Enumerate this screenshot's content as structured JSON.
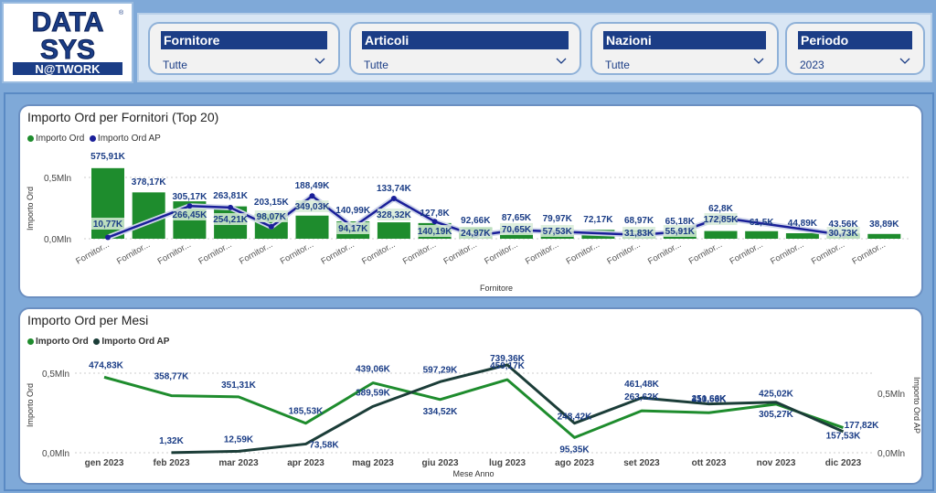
{
  "logo": {
    "line1": "DATA",
    "line2": "SYS",
    "line3": "N@TWORK"
  },
  "filters": [
    {
      "title": "Fornitore",
      "value": "Tutte"
    },
    {
      "title": "Articoli",
      "value": "Tutte"
    },
    {
      "title": "Nazioni",
      "value": "Tutte"
    },
    {
      "title": "Periodo",
      "value": "2023"
    }
  ],
  "charts": {
    "suppliers": {
      "title": "Importo Ord per Fornitori (Top 20)",
      "legend": [
        "Importo Ord",
        "Importo Ord AP"
      ],
      "y_ticks": [
        "0,5Mln",
        "0,0Mln"
      ],
      "y_label": "Importo Ord",
      "x_label": "Fornitore"
    },
    "months": {
      "title": "Importo Ord per Mesi",
      "legend": [
        "Importo Ord",
        "Importo Ord AP"
      ],
      "y_ticks_left": [
        "0,5Mln",
        "0,0Mln"
      ],
      "y_ticks_right": [
        "0,5Mln",
        "0,0Mln"
      ],
      "y_label": "Importo Ord",
      "y_label_right": "Importo Ord AP",
      "x_label": "Mese Anno"
    }
  },
  "colors": {
    "green": "#1e8c2d",
    "navy": "#1a1f99",
    "darkgreen": "#1b3d38"
  },
  "chart_data": [
    {
      "type": "bar",
      "title": "Importo Ord per Fornitori (Top 20)",
      "categories": [
        "Fornitor...",
        "Fornitor...",
        "Fornitor...",
        "Fornitor...",
        "Fornitor...",
        "Fornitor...",
        "Fornitor...",
        "Fornitor...",
        "Fornitor...",
        "Fornitor...",
        "Fornitor...",
        "Fornitor...",
        "Fornitor...",
        "Fornitor...",
        "Fornitor...",
        "Fornitor...",
        "Fornitor...",
        "Fornitor...",
        "Fornitor...",
        "Fornitor..."
      ],
      "series": [
        {
          "name": "Importo Ord",
          "values": [
            575910,
            378170,
            305170,
            263810,
            203150,
            188490,
            140990,
            133740,
            127800,
            92660,
            87650,
            79970,
            72170,
            68970,
            65180,
            62800,
            61500,
            44890,
            43560,
            38890
          ],
          "labels": [
            "575,91K",
            "378,17K",
            "305,17K",
            "263,81K",
            "203,15K",
            "188,49K",
            "140,99K",
            "133,74K",
            "127,8K",
            "92,66K",
            "87,65K",
            "79,97K",
            "72,17K",
            "68,97K",
            "65,18K",
            "62,8K",
            "61,5K",
            "44,89K",
            "43,56K",
            "38,89K"
          ]
        },
        {
          "name": "Importo Ord AP",
          "values": [
            10770,
            null,
            266450,
            254210,
            98070,
            349030,
            94170,
            328320,
            140190,
            24970,
            70650,
            57530,
            null,
            31830,
            55910,
            172850,
            null,
            null,
            30730,
            null
          ],
          "labels": [
            "10,77K",
            "",
            "266,45K",
            "254,21K",
            "98,07K",
            "349,03K",
            "94,17K",
            "328,32K",
            "140,19K",
            "24,97K",
            "70,65K",
            "57,53K",
            "",
            "31,83K",
            "55,91K",
            "172,85K",
            "",
            "",
            "30,73K",
            ""
          ]
        }
      ],
      "xlabel": "Fornitore",
      "ylabel": "Importo Ord",
      "y_ticks": [
        "0,0Mln",
        "0,5Mln"
      ]
    },
    {
      "type": "line",
      "title": "Importo Ord per Mesi",
      "categories": [
        "gen 2023",
        "feb 2023",
        "mar 2023",
        "apr 2023",
        "mag 2023",
        "giu 2023",
        "lug 2023",
        "ago 2023",
        "set 2023",
        "ott 2023",
        "nov 2023",
        "dic 2023"
      ],
      "series": [
        {
          "name": "Importo Ord",
          "values": [
            474830,
            358770,
            351310,
            185530,
            439060,
            334520,
            459170,
            95350,
            263620,
            251660,
            305270,
            157530
          ],
          "labels": [
            "474,83K",
            "358,77K",
            "351,31K",
            "185,53K",
            "439,06K",
            "334,52K",
            "459,17K",
            "95,35K",
            "263,62K",
            "251,66K",
            "305,27K",
            "157,53K"
          ]
        },
        {
          "name": "Importo Ord AP",
          "values": [
            null,
            1320,
            12590,
            73580,
            389590,
            597290,
            739360,
            248420,
            461480,
            410530,
            425020,
            177820
          ],
          "labels": [
            "",
            "1,32K",
            "12,59K",
            "73,58K",
            "389,59K",
            "597,29K",
            "739,36K",
            "248,42K",
            "461,48K",
            "410,53K",
            "425,02K",
            "177,82K"
          ]
        }
      ],
      "xlabel": "Mese Anno",
      "ylabel": "Importo Ord",
      "y2label": "Importo Ord AP",
      "y_ticks": [
        "0,0Mln",
        "0,5Mln"
      ]
    }
  ]
}
